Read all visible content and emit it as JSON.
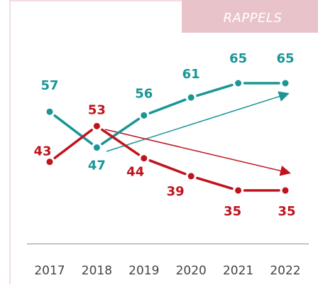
{
  "tag": "RAPPELS",
  "chart_data": {
    "type": "line",
    "categories": [
      "2017",
      "2018",
      "2019",
      "2020",
      "2021",
      "2022"
    ],
    "series": [
      {
        "color": "#1a9696",
        "values": [
          57,
          47,
          56,
          61,
          65,
          65
        ]
      },
      {
        "color": "#c0131c",
        "values": [
          43,
          53,
          44,
          39,
          35,
          35
        ]
      }
    ]
  }
}
